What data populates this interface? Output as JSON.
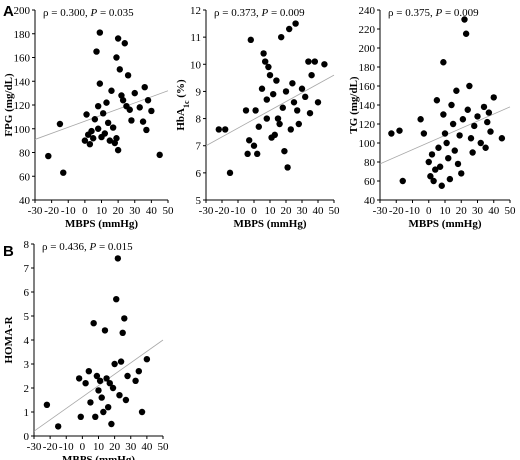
{
  "panel_letters": [
    "A",
    "B"
  ],
  "chart_data": [
    {
      "type": "scatter",
      "panel": "A",
      "stat_label": "ρ = 0.300, ",
      "p_letter": "P",
      "p_value": " = 0.035",
      "xlabel": "MBPS (mmHg)",
      "ylabel": "FPG (mg/dL)",
      "xlim": [
        -30,
        50
      ],
      "ylim": [
        40,
        200
      ],
      "x_ticks": [
        -30,
        -20,
        -10,
        0,
        10,
        20,
        30,
        40,
        50
      ],
      "y_ticks": [
        40,
        60,
        80,
        100,
        120,
        140,
        160,
        180,
        200
      ],
      "trend_line": {
        "x": [
          -30,
          50
        ],
        "y": [
          91,
          132
        ]
      },
      "points": [
        {
          "x": -22,
          "y": 77
        },
        {
          "x": -15,
          "y": 104
        },
        {
          "x": -13,
          "y": 63
        },
        {
          "x": 0,
          "y": 90
        },
        {
          "x": 1,
          "y": 112
        },
        {
          "x": 2,
          "y": 95
        },
        {
          "x": 3,
          "y": 87
        },
        {
          "x": 4,
          "y": 98
        },
        {
          "x": 5,
          "y": 92
        },
        {
          "x": 6,
          "y": 108
        },
        {
          "x": 7,
          "y": 165
        },
        {
          "x": 8,
          "y": 119
        },
        {
          "x": 8,
          "y": 100
        },
        {
          "x": 9,
          "y": 181
        },
        {
          "x": 9,
          "y": 138
        },
        {
          "x": 10,
          "y": 93
        },
        {
          "x": 11,
          "y": 113
        },
        {
          "x": 12,
          "y": 96
        },
        {
          "x": 13,
          "y": 122
        },
        {
          "x": 14,
          "y": 105
        },
        {
          "x": 15,
          "y": 90
        },
        {
          "x": 16,
          "y": 132
        },
        {
          "x": 17,
          "y": 101
        },
        {
          "x": 18,
          "y": 88
        },
        {
          "x": 19,
          "y": 160
        },
        {
          "x": 19,
          "y": 92
        },
        {
          "x": 20,
          "y": 82
        },
        {
          "x": 20,
          "y": 176
        },
        {
          "x": 21,
          "y": 150
        },
        {
          "x": 22,
          "y": 128
        },
        {
          "x": 23,
          "y": 124
        },
        {
          "x": 24,
          "y": 172
        },
        {
          "x": 25,
          "y": 119
        },
        {
          "x": 26,
          "y": 145
        },
        {
          "x": 27,
          "y": 116
        },
        {
          "x": 28,
          "y": 107
        },
        {
          "x": 30,
          "y": 130
        },
        {
          "x": 33,
          "y": 118
        },
        {
          "x": 35,
          "y": 106
        },
        {
          "x": 36,
          "y": 135
        },
        {
          "x": 37,
          "y": 99
        },
        {
          "x": 38,
          "y": 124
        },
        {
          "x": 40,
          "y": 115
        },
        {
          "x": 45,
          "y": 78
        }
      ]
    },
    {
      "type": "scatter",
      "panel": "A",
      "stat_label": "ρ = 0.373, ",
      "p_letter": "P",
      "p_value": " = 0.009",
      "xlabel": "MBPS (mmHg)",
      "ylabel_main": "HbA",
      "ylabel_sub": "1c",
      "ylabel_tail": " (%)",
      "xlim": [
        -30,
        50
      ],
      "ylim": [
        5,
        12
      ],
      "x_ticks": [
        -30,
        -20,
        -10,
        0,
        10,
        20,
        30,
        40,
        50
      ],
      "y_ticks": [
        5,
        6,
        7,
        8,
        9,
        10,
        11,
        12
      ],
      "trend_line": {
        "x": [
          -30,
          50
        ],
        "y": [
          7.0,
          9.6
        ]
      },
      "points": [
        {
          "x": -22,
          "y": 7.6
        },
        {
          "x": -18,
          "y": 7.6
        },
        {
          "x": -15,
          "y": 6.0
        },
        {
          "x": -5,
          "y": 8.3
        },
        {
          "x": -4,
          "y": 6.7
        },
        {
          "x": -3,
          "y": 7.2
        },
        {
          "x": -2,
          "y": 10.9
        },
        {
          "x": 0,
          "y": 7.0
        },
        {
          "x": 1,
          "y": 8.3
        },
        {
          "x": 2,
          "y": 6.7
        },
        {
          "x": 3,
          "y": 7.7
        },
        {
          "x": 5,
          "y": 9.1
        },
        {
          "x": 6,
          "y": 10.4
        },
        {
          "x": 7,
          "y": 10.1
        },
        {
          "x": 8,
          "y": 8.7
        },
        {
          "x": 8,
          "y": 8.0
        },
        {
          "x": 9,
          "y": 9.9
        },
        {
          "x": 10,
          "y": 9.6
        },
        {
          "x": 11,
          "y": 7.3
        },
        {
          "x": 12,
          "y": 8.9
        },
        {
          "x": 13,
          "y": 7.4
        },
        {
          "x": 14,
          "y": 9.4
        },
        {
          "x": 15,
          "y": 8.0
        },
        {
          "x": 16,
          "y": 7.8
        },
        {
          "x": 17,
          "y": 11.0
        },
        {
          "x": 18,
          "y": 8.4
        },
        {
          "x": 19,
          "y": 6.8
        },
        {
          "x": 20,
          "y": 9.0
        },
        {
          "x": 21,
          "y": 6.2
        },
        {
          "x": 22,
          "y": 11.3
        },
        {
          "x": 23,
          "y": 7.6
        },
        {
          "x": 24,
          "y": 9.3
        },
        {
          "x": 25,
          "y": 8.6
        },
        {
          "x": 26,
          "y": 11.5
        },
        {
          "x": 27,
          "y": 8.3
        },
        {
          "x": 28,
          "y": 7.8
        },
        {
          "x": 30,
          "y": 9.1
        },
        {
          "x": 32,
          "y": 8.8
        },
        {
          "x": 34,
          "y": 10.1
        },
        {
          "x": 35,
          "y": 8.2
        },
        {
          "x": 36,
          "y": 9.6
        },
        {
          "x": 38,
          "y": 10.1
        },
        {
          "x": 40,
          "y": 8.6
        },
        {
          "x": 44,
          "y": 10.0
        }
      ]
    },
    {
      "type": "scatter",
      "panel": "A",
      "stat_label": "ρ = 0.375, ",
      "p_letter": "P",
      "p_value": " = 0.009",
      "xlabel": "MBPS (mmHg)",
      "ylabel": "TG (mg/dL)",
      "xlim": [
        -30,
        50
      ],
      "ylim": [
        40,
        240
      ],
      "x_ticks": [
        -30,
        -20,
        -10,
        0,
        10,
        20,
        30,
        40,
        50
      ],
      "y_ticks": [
        40,
        60,
        80,
        100,
        120,
        140,
        160,
        180,
        200,
        220,
        240
      ],
      "trend_line": {
        "x": [
          -30,
          50
        ],
        "y": [
          78,
          138
        ]
      },
      "points": [
        {
          "x": -23,
          "y": 110
        },
        {
          "x": -18,
          "y": 113
        },
        {
          "x": -16,
          "y": 60
        },
        {
          "x": -5,
          "y": 125
        },
        {
          "x": -3,
          "y": 110
        },
        {
          "x": 0,
          "y": 80
        },
        {
          "x": 1,
          "y": 65
        },
        {
          "x": 2,
          "y": 88
        },
        {
          "x": 3,
          "y": 60
        },
        {
          "x": 4,
          "y": 72
        },
        {
          "x": 5,
          "y": 145
        },
        {
          "x": 6,
          "y": 95
        },
        {
          "x": 7,
          "y": 75
        },
        {
          "x": 8,
          "y": 55
        },
        {
          "x": 9,
          "y": 185
        },
        {
          "x": 9,
          "y": 130
        },
        {
          "x": 10,
          "y": 110
        },
        {
          "x": 11,
          "y": 100
        },
        {
          "x": 12,
          "y": 84
        },
        {
          "x": 13,
          "y": 62
        },
        {
          "x": 14,
          "y": 140
        },
        {
          "x": 15,
          "y": 120
        },
        {
          "x": 16,
          "y": 92
        },
        {
          "x": 17,
          "y": 155
        },
        {
          "x": 18,
          "y": 78
        },
        {
          "x": 19,
          "y": 108
        },
        {
          "x": 20,
          "y": 68
        },
        {
          "x": 21,
          "y": 125
        },
        {
          "x": 22,
          "y": 230
        },
        {
          "x": 23,
          "y": 215
        },
        {
          "x": 24,
          "y": 135
        },
        {
          "x": 25,
          "y": 160
        },
        {
          "x": 26,
          "y": 105
        },
        {
          "x": 27,
          "y": 90
        },
        {
          "x": 28,
          "y": 118
        },
        {
          "x": 30,
          "y": 128
        },
        {
          "x": 32,
          "y": 100
        },
        {
          "x": 34,
          "y": 138
        },
        {
          "x": 35,
          "y": 95
        },
        {
          "x": 36,
          "y": 122
        },
        {
          "x": 37,
          "y": 132
        },
        {
          "x": 38,
          "y": 112
        },
        {
          "x": 40,
          "y": 148
        },
        {
          "x": 45,
          "y": 105
        }
      ]
    },
    {
      "type": "scatter",
      "panel": "B",
      "stat_label": "ρ = 0.436, ",
      "p_letter": "P",
      "p_value": " = 0.015",
      "xlabel": "MBPS (mmHg)",
      "ylabel": "HOMA-R",
      "xlim": [
        -30,
        50
      ],
      "ylim": [
        0,
        8
      ],
      "x_ticks": [
        -30,
        -20,
        -10,
        0,
        10,
        20,
        30,
        40,
        50
      ],
      "y_ticks": [
        0,
        1,
        2,
        3,
        4,
        5,
        6,
        7,
        8
      ],
      "trend_line": {
        "x": [
          -30,
          50
        ],
        "y": [
          0.2,
          4.0
        ]
      },
      "points": [
        {
          "x": -22,
          "y": 1.3
        },
        {
          "x": -15,
          "y": 0.4
        },
        {
          "x": -2,
          "y": 2.4
        },
        {
          "x": -1,
          "y": 0.8
        },
        {
          "x": 2,
          "y": 2.2
        },
        {
          "x": 4,
          "y": 2.7
        },
        {
          "x": 5,
          "y": 1.4
        },
        {
          "x": 7,
          "y": 4.7
        },
        {
          "x": 8,
          "y": 0.8
        },
        {
          "x": 9,
          "y": 2.5
        },
        {
          "x": 10,
          "y": 1.9
        },
        {
          "x": 11,
          "y": 2.3
        },
        {
          "x": 12,
          "y": 1.6
        },
        {
          "x": 13,
          "y": 1.0
        },
        {
          "x": 14,
          "y": 4.4
        },
        {
          "x": 15,
          "y": 2.4
        },
        {
          "x": 16,
          "y": 1.2
        },
        {
          "x": 17,
          "y": 2.2
        },
        {
          "x": 18,
          "y": 0.5
        },
        {
          "x": 19,
          "y": 2.0
        },
        {
          "x": 20,
          "y": 3.0
        },
        {
          "x": 21,
          "y": 5.7
        },
        {
          "x": 22,
          "y": 7.4
        },
        {
          "x": 23,
          "y": 1.7
        },
        {
          "x": 24,
          "y": 3.1
        },
        {
          "x": 25,
          "y": 4.3
        },
        {
          "x": 26,
          "y": 4.9
        },
        {
          "x": 27,
          "y": 1.5
        },
        {
          "x": 28,
          "y": 2.5
        },
        {
          "x": 33,
          "y": 2.3
        },
        {
          "x": 35,
          "y": 2.7
        },
        {
          "x": 37,
          "y": 1.0
        },
        {
          "x": 40,
          "y": 3.2
        }
      ]
    }
  ]
}
